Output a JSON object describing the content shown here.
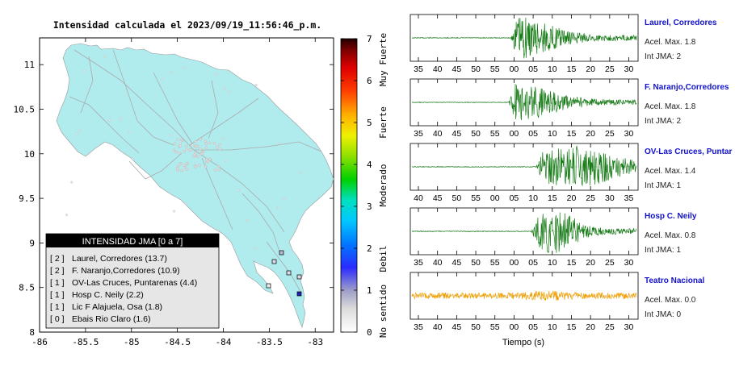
{
  "map": {
    "title": "Intensidad calculada el 2023/09/19_11:56:46_p.m.",
    "x_ticks": [
      "-86",
      "-85.5",
      "-85",
      "-84.5",
      "-84",
      "-83.5",
      "-83"
    ],
    "y_ticks": [
      "11",
      "10.5",
      "10",
      "9.5",
      "9",
      "8.5",
      "8"
    ],
    "xlim": [
      -86,
      -82.8
    ],
    "ylim": [
      8,
      11.3
    ],
    "land_color": "#b0ecee",
    "legend": {
      "title": "INTENSIDAD JMA [0 a 7]",
      "entries": [
        {
          "code": "[ 2 ]",
          "text": "Laurel, Corredores (13.7)"
        },
        {
          "code": "[ 2 ]",
          "text": "F. Naranjo,Corredores (10.9)"
        },
        {
          "code": "[ 1 ]",
          "text": "OV-Las Cruces, Puntarenas (4.4)"
        },
        {
          "code": "[ 1 ]",
          "text": "Hosp C. Neily (2.2)"
        },
        {
          "code": "[ 1 ]",
          "text": "Lic F Alajuela, Osa (1.8)"
        },
        {
          "code": "[ 0 ]",
          "text": "Ebais Rio Claro (1.6)"
        }
      ]
    }
  },
  "colorbar": {
    "ticks": [
      "0",
      "1",
      "2",
      "3",
      "4",
      "5",
      "6",
      "7"
    ],
    "labels": [
      "No sentido",
      "Debil",
      "Moderado",
      "Fuerte",
      "Muy Fuerte"
    ]
  },
  "chart_data": [
    {
      "type": "line",
      "name": "Laurel, Corredores",
      "x_tick_labels": [
        "35",
        "40",
        "45",
        "50",
        "55",
        "00",
        "05",
        "10",
        "15",
        "20",
        "25",
        "30"
      ],
      "peak_accel": "Acel. Max. 1.8",
      "jma": "Int JMA: 2",
      "color": "#137a13"
    },
    {
      "type": "line",
      "name": "F. Naranjo,Corredores",
      "x_tick_labels": [
        "35",
        "40",
        "45",
        "50",
        "55",
        "00",
        "05",
        "10",
        "15",
        "20",
        "25",
        "30"
      ],
      "peak_accel": "Acel. Max. 1.8",
      "jma": "Int JMA: 2",
      "color": "#137a13"
    },
    {
      "type": "line",
      "name": "OV-Las Cruces, Puntar",
      "x_tick_labels": [
        "40",
        "45",
        "50",
        "55",
        "00",
        "05",
        "10",
        "15",
        "20",
        "25",
        "30",
        "35"
      ],
      "peak_accel": "Acel. Max. 1.4",
      "jma": "Int JMA: 1",
      "color": "#137a13"
    },
    {
      "type": "line",
      "name": "Hosp C. Neily",
      "x_tick_labels": [
        "35",
        "40",
        "45",
        "50",
        "55",
        "00",
        "05",
        "10",
        "15",
        "20",
        "25",
        "30"
      ],
      "peak_accel": "Acel. Max. 0.8",
      "jma": "Int JMA: 1",
      "color": "#137a13"
    },
    {
      "type": "line",
      "name": "Teatro Nacional",
      "x_tick_labels": [
        "35",
        "40",
        "45",
        "50",
        "55",
        "00",
        "05",
        "10",
        "15",
        "20",
        "25",
        "30"
      ],
      "peak_accel": "Acel. Max. 0.0",
      "jma": "Int JMA: 0",
      "color": "#f0a000"
    }
  ],
  "xlabel": "Tiempo (s)"
}
